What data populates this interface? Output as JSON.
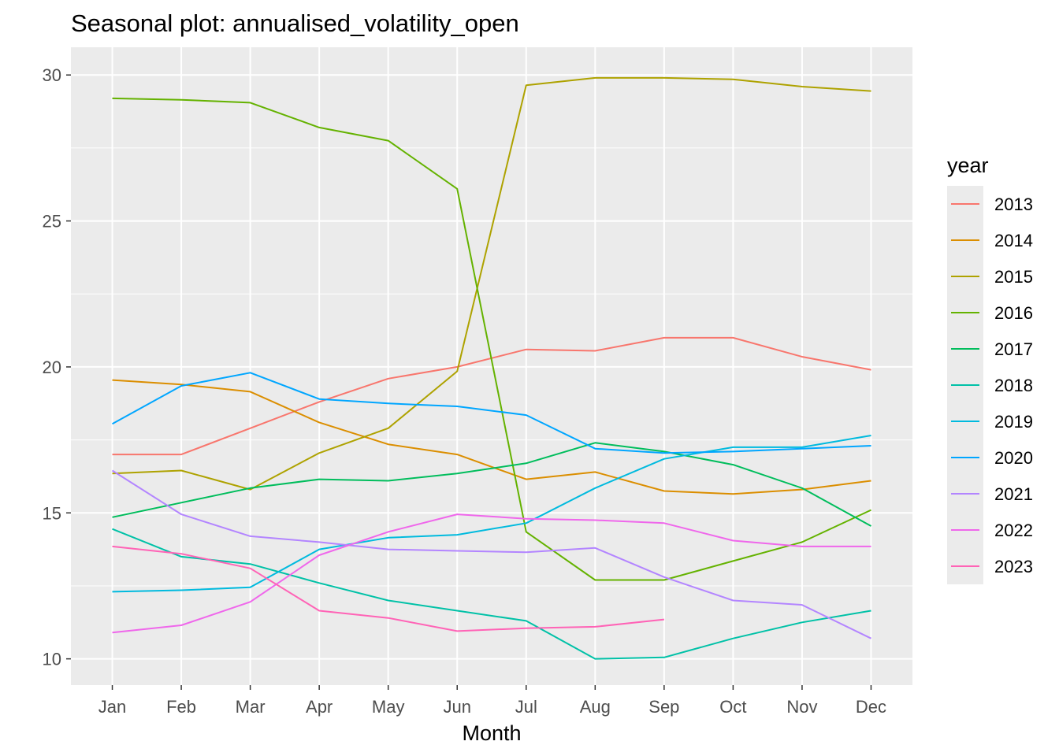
{
  "chart_data": {
    "type": "line",
    "title": "Seasonal plot: annualised_volatility_open",
    "xlabel": "Month",
    "ylabel": "",
    "categories": [
      "Jan",
      "Feb",
      "Mar",
      "Apr",
      "May",
      "Jun",
      "Jul",
      "Aug",
      "Sep",
      "Oct",
      "Nov",
      "Dec"
    ],
    "ylim": [
      9.1,
      30.95
    ],
    "yticks": [
      10,
      15,
      20,
      25,
      30
    ],
    "grid": true,
    "legend": {
      "title": "year",
      "position": "right"
    },
    "series": [
      {
        "name": "2013",
        "color": "#F8766D",
        "values": [
          17.0,
          17.0,
          17.9,
          18.8,
          19.6,
          20.0,
          20.6,
          20.55,
          21.0,
          21.0,
          20.35,
          19.9
        ]
      },
      {
        "name": "2014",
        "color": "#DB8E00",
        "values": [
          19.55,
          19.4,
          19.15,
          18.1,
          17.35,
          17.0,
          16.15,
          16.4,
          15.75,
          15.65,
          15.8,
          16.1
        ]
      },
      {
        "name": "2015",
        "color": "#AEA200",
        "values": [
          16.35,
          16.45,
          15.8,
          17.05,
          17.9,
          19.85,
          29.65,
          29.9,
          29.9,
          29.85,
          29.6,
          29.45
        ]
      },
      {
        "name": "2016",
        "color": "#64B200",
        "values": [
          29.2,
          29.15,
          29.05,
          28.2,
          27.75,
          26.1,
          14.35,
          12.7,
          12.7,
          13.35,
          14.0,
          15.1
        ]
      },
      {
        "name": "2017",
        "color": "#00BD5C",
        "values": [
          14.85,
          15.35,
          15.85,
          16.15,
          16.1,
          16.35,
          16.7,
          17.4,
          17.1,
          16.65,
          15.85,
          14.55
        ]
      },
      {
        "name": "2018",
        "color": "#00C1A7",
        "values": [
          14.45,
          13.5,
          13.25,
          12.6,
          12.0,
          11.65,
          11.3,
          10.0,
          10.05,
          10.7,
          11.25,
          11.65
        ]
      },
      {
        "name": "2019",
        "color": "#00BADE",
        "values": [
          12.3,
          12.35,
          12.45,
          13.75,
          14.15,
          14.25,
          14.65,
          15.85,
          16.85,
          17.25,
          17.25,
          17.65
        ]
      },
      {
        "name": "2020",
        "color": "#00A6FF",
        "values": [
          18.05,
          19.35,
          19.8,
          18.9,
          18.75,
          18.65,
          18.35,
          17.2,
          17.05,
          17.1,
          17.2,
          17.3
        ]
      },
      {
        "name": "2021",
        "color": "#B385FF",
        "values": [
          16.45,
          14.95,
          14.2,
          14.0,
          13.75,
          13.7,
          13.65,
          13.8,
          12.8,
          12.0,
          11.85,
          10.7
        ]
      },
      {
        "name": "2022",
        "color": "#EF67EB",
        "values": [
          10.9,
          11.15,
          11.95,
          13.55,
          14.35,
          14.95,
          14.8,
          14.75,
          14.65,
          14.05,
          13.85,
          13.85
        ]
      },
      {
        "name": "2023",
        "color": "#FF63B6",
        "values": [
          13.85,
          13.6,
          13.1,
          11.65,
          11.4,
          10.95,
          11.05,
          11.1,
          11.35,
          null,
          null,
          null
        ]
      }
    ]
  }
}
